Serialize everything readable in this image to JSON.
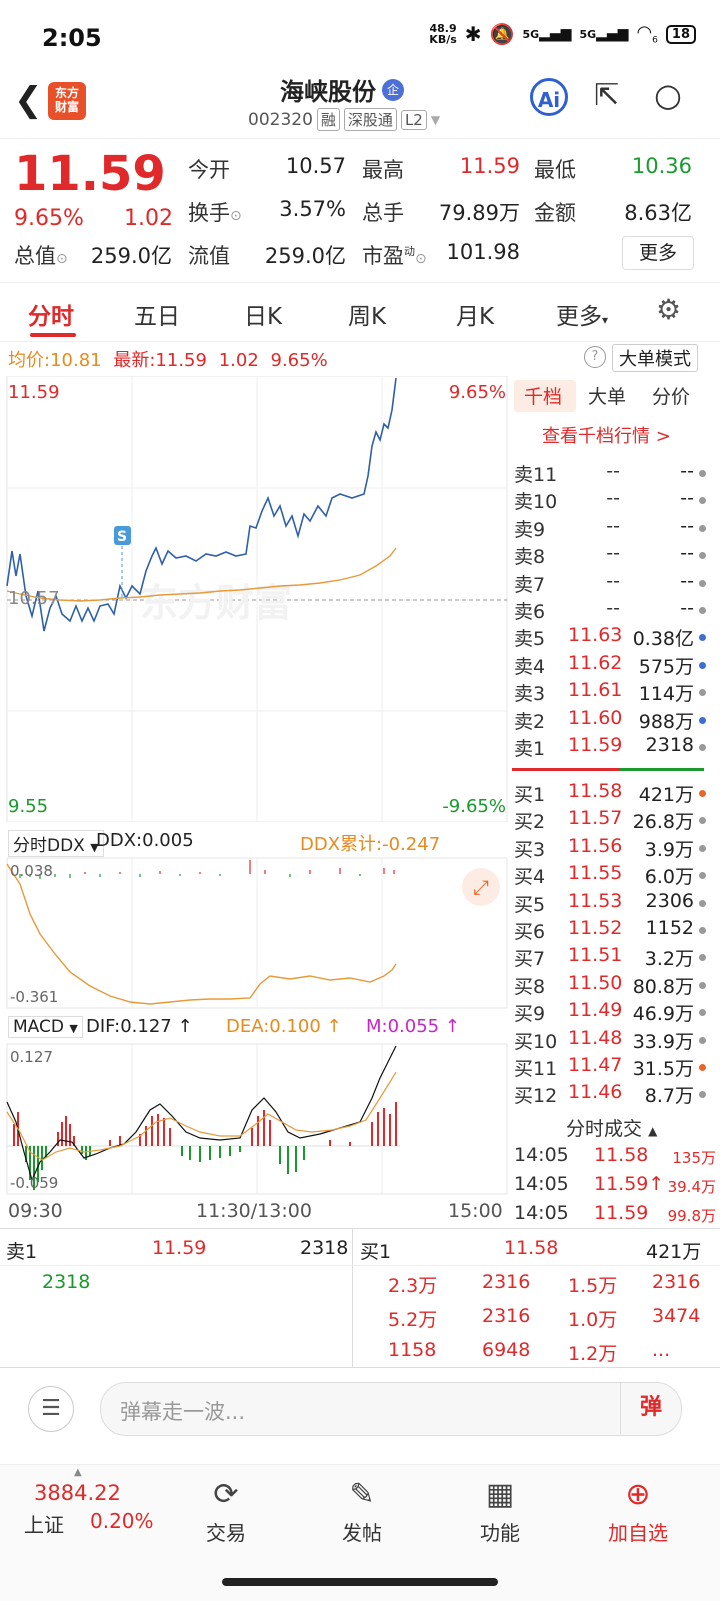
{
  "status_bar": {
    "time": "2:05",
    "net_speed_value": "48.9",
    "net_speed_unit": "KB/s",
    "signal1": "5G",
    "signal2": "5G",
    "wifi_sub": "6",
    "battery": "18"
  },
  "header": {
    "logo_line1": "东方",
    "logo_line2": "财富",
    "stock_name": "海峡股份",
    "badge": "企",
    "code": "002320",
    "tags": [
      "融",
      "深股通",
      "L2"
    ],
    "ai_label": "Ai"
  },
  "quote": {
    "price": "11.59",
    "change_pct": "9.65%",
    "change": "1.02",
    "fields": [
      {
        "label": "今开",
        "value": "10.57",
        "color": "dark"
      },
      {
        "label": "最高",
        "value": "11.59",
        "color": "red"
      },
      {
        "label": "最低",
        "value": "10.36",
        "color": "green"
      },
      {
        "label": "换手",
        "value": "3.57%",
        "color": "dark"
      },
      {
        "label": "总手",
        "value": "79.89万",
        "color": "dark"
      },
      {
        "label": "金额",
        "value": "8.63亿",
        "color": "dark"
      },
      {
        "label": "总值",
        "value": "259.0亿",
        "color": "dark"
      },
      {
        "label": "流值",
        "value": "259.0亿",
        "color": "dark"
      },
      {
        "label": "市盈",
        "value": "101.98",
        "color": "dark"
      }
    ],
    "pe_sup": "动",
    "more_label": "更多"
  },
  "tabs": [
    "分时",
    "五日",
    "日K",
    "周K",
    "月K",
    "更多"
  ],
  "avg_line": {
    "avg_label": "均价:",
    "avg_value": "10.81",
    "latest_label": "最新:",
    "latest_value": "11.59",
    "change": "1.02",
    "pct": "9.65%"
  },
  "big_order_mode": "大单模式",
  "help_icon": "?",
  "main_chart": {
    "y_max": "11.59",
    "y_mid": "10.57",
    "y_min": "9.55",
    "pct_max": "9.65%",
    "pct_min": "-9.65%",
    "marker": "S",
    "watermark": "东方财富"
  },
  "ddx": {
    "selector": "分时DDX",
    "ddx_label": "DDX:0.005",
    "ddx_cum_label": "DDX累计:-0.247",
    "y_top": "0.038",
    "y_bottom": "-0.361"
  },
  "macd": {
    "selector": "MACD",
    "dif": "DIF:0.127",
    "dea": "DEA:0.100",
    "m": "M:0.055",
    "y_top": "0.127",
    "y_bottom": "-0.059"
  },
  "time_axis": [
    "09:30",
    "11:30/13:00",
    "15:00"
  ],
  "book": {
    "tabs": [
      "千档",
      "大单",
      "分价"
    ],
    "view_more": "查看千档行情 >",
    "sells": [
      {
        "label": "卖11",
        "price": "--",
        "vol": "--",
        "dot": "#999"
      },
      {
        "label": "卖10",
        "price": "--",
        "vol": "--",
        "dot": "#999"
      },
      {
        "label": "卖9",
        "price": "--",
        "vol": "--",
        "dot": "#999"
      },
      {
        "label": "卖8",
        "price": "--",
        "vol": "--",
        "dot": "#999"
      },
      {
        "label": "卖7",
        "price": "--",
        "vol": "--",
        "dot": "#999"
      },
      {
        "label": "卖6",
        "price": "--",
        "vol": "--",
        "dot": "#999"
      },
      {
        "label": "卖5",
        "price": "11.63",
        "vol": "0.38亿",
        "dot": "#3d6fd1"
      },
      {
        "label": "卖4",
        "price": "11.62",
        "vol": "575万",
        "dot": "#3d6fd1"
      },
      {
        "label": "卖3",
        "price": "11.61",
        "vol": "114万",
        "dot": "#999"
      },
      {
        "label": "卖2",
        "price": "11.60",
        "vol": "988万",
        "dot": "#3d6fd1"
      },
      {
        "label": "卖1",
        "price": "11.59",
        "vol": "2318",
        "dot": "#999"
      }
    ],
    "buys": [
      {
        "label": "买1",
        "price": "11.58",
        "vol": "421万",
        "dot": "#e8662a"
      },
      {
        "label": "买2",
        "price": "11.57",
        "vol": "26.8万",
        "dot": "#999"
      },
      {
        "label": "买3",
        "price": "11.56",
        "vol": "3.9万",
        "dot": "#999"
      },
      {
        "label": "买4",
        "price": "11.55",
        "vol": "6.0万",
        "dot": "#999"
      },
      {
        "label": "买5",
        "price": "11.53",
        "vol": "2306",
        "dot": "#999"
      },
      {
        "label": "买6",
        "price": "11.52",
        "vol": "1152",
        "dot": "#999"
      },
      {
        "label": "买7",
        "price": "11.51",
        "vol": "3.2万",
        "dot": "#999"
      },
      {
        "label": "买8",
        "price": "11.50",
        "vol": "80.8万",
        "dot": "#999"
      },
      {
        "label": "买9",
        "price": "11.49",
        "vol": "46.9万",
        "dot": "#999"
      },
      {
        "label": "买10",
        "price": "11.48",
        "vol": "33.9万",
        "dot": "#999"
      },
      {
        "label": "买11",
        "price": "11.47",
        "vol": "31.5万",
        "dot": "#e8662a"
      },
      {
        "label": "买12",
        "price": "11.46",
        "vol": "8.7万",
        "dot": "#999"
      }
    ],
    "trades_title": "分时成交",
    "trades": [
      {
        "time": "14:05",
        "price": "11.58",
        "vol": "135万"
      },
      {
        "time": "14:05",
        "price": "11.59↑",
        "vol": "39.4万"
      },
      {
        "time": "14:05",
        "price": "11.59",
        "vol": "99.8万"
      }
    ]
  },
  "level1": {
    "sell_label": "卖1",
    "sell_price": "11.59",
    "sell_vol": "2318",
    "buy_label": "买1",
    "buy_price": "11.58",
    "buy_vol": "421万",
    "sell_queue": [
      "2318"
    ],
    "buy_queue": [
      "2.3万",
      "2316",
      "1.5万",
      "2316",
      "5.2万",
      "2316",
      "1.0万",
      "3474",
      "1158",
      "6948",
      "1.2万",
      "..."
    ]
  },
  "comment": {
    "placeholder": "弹幕走一波...",
    "danmu_btn": "弹"
  },
  "bottom_nav": {
    "index_value": "3884.22",
    "index_name": "上证",
    "index_pct": "0.20%",
    "items": [
      "交易",
      "发帖",
      "功能",
      "加自选"
    ]
  }
}
